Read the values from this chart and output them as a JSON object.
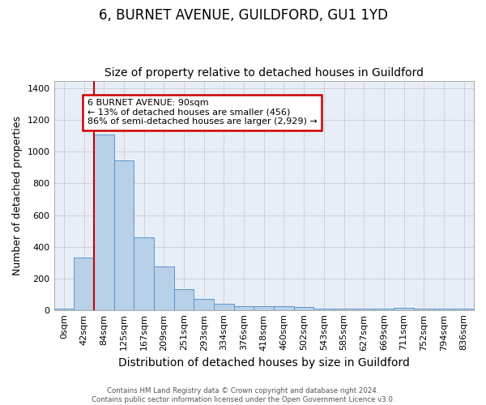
{
  "title": "6, BURNET AVENUE, GUILDFORD, GU1 1YD",
  "subtitle": "Size of property relative to detached houses in Guildford",
  "xlabel": "Distribution of detached houses by size in Guildford",
  "ylabel": "Number of detached properties",
  "footer_line1": "Contains HM Land Registry data © Crown copyright and database right 2024.",
  "footer_line2": "Contains public sector information licensed under the Open Government Licence v3.0.",
  "categories": [
    "0sqm",
    "42sqm",
    "84sqm",
    "125sqm",
    "167sqm",
    "209sqm",
    "251sqm",
    "293sqm",
    "334sqm",
    "376sqm",
    "418sqm",
    "460sqm",
    "502sqm",
    "543sqm",
    "585sqm",
    "627sqm",
    "669sqm",
    "711sqm",
    "752sqm",
    "794sqm",
    "836sqm"
  ],
  "values": [
    8,
    330,
    1110,
    945,
    460,
    275,
    130,
    70,
    40,
    25,
    25,
    25,
    20,
    8,
    8,
    8,
    8,
    12,
    8,
    8,
    8
  ],
  "bar_color": "#b8d0e8",
  "bar_edge_color": "#5a96cc",
  "highlight_bar_index": 2,
  "highlight_line_color": "#cc0000",
  "ylim": [
    0,
    1450
  ],
  "yticks": [
    0,
    200,
    400,
    600,
    800,
    1000,
    1200,
    1400
  ],
  "annotation_text": "6 BURNET AVENUE: 90sqm\n← 13% of detached houses are smaller (456)\n86% of semi-detached houses are larger (2,929) →",
  "annotation_box_color": "#ffffff",
  "annotation_box_edge_color": "#cc0000",
  "background_color": "#e8eef8",
  "grid_color": "#cccccc",
  "title_fontsize": 12,
  "subtitle_fontsize": 10,
  "xlabel_fontsize": 10,
  "ylabel_fontsize": 9,
  "tick_fontsize": 8,
  "annot_fontsize": 8
}
